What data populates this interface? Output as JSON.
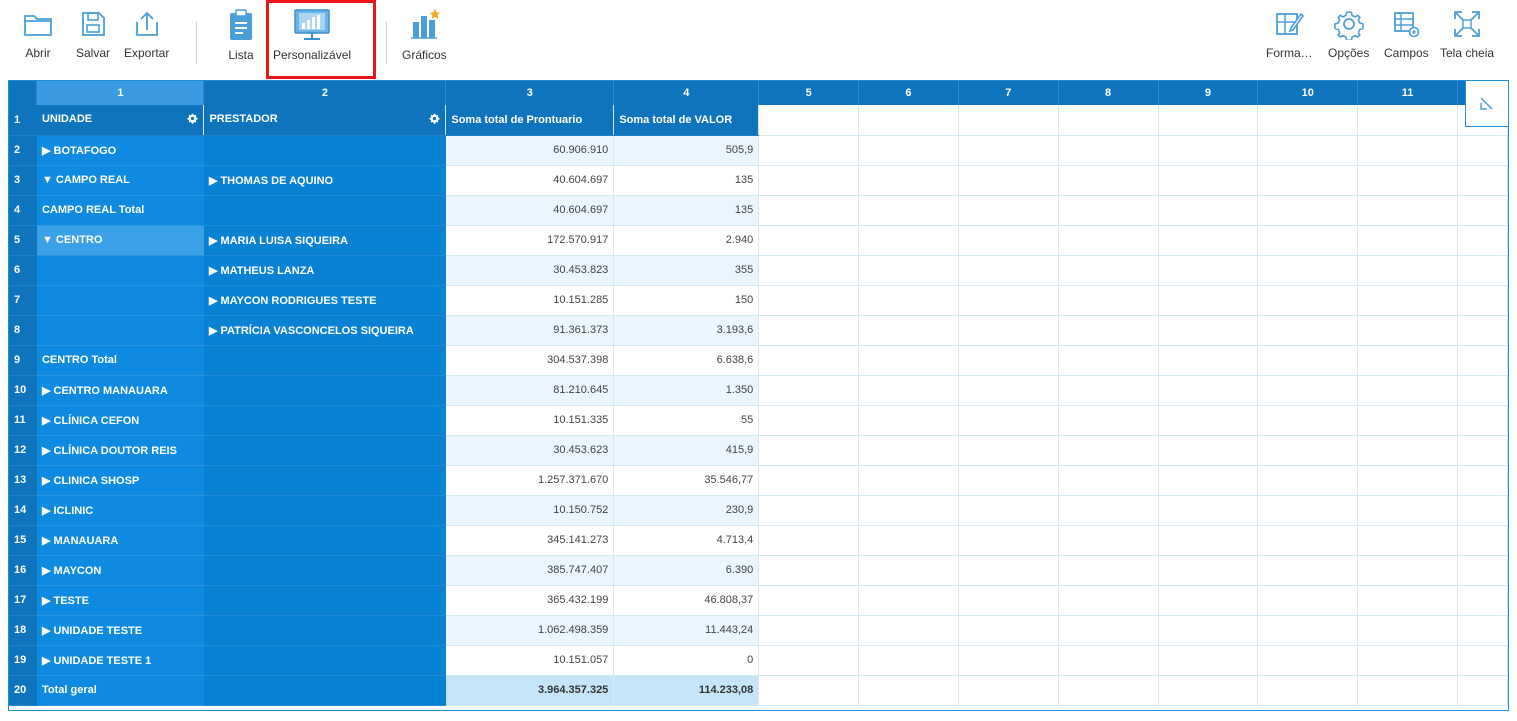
{
  "toolbar": {
    "left": [
      {
        "label": "Abrir",
        "icon": "folder-icon"
      },
      {
        "label": "Salvar",
        "icon": "save-icon"
      },
      {
        "label": "Exportar",
        "icon": "export-icon"
      },
      {
        "label": "Lista",
        "icon": "clipboard-icon"
      },
      {
        "label": "Personalizável",
        "icon": "monitor-chart-icon"
      },
      {
        "label": "Gráficos",
        "icon": "charts-icon"
      }
    ],
    "right": [
      {
        "label": "Forma…",
        "icon": "format-icon"
      },
      {
        "label": "Opções",
        "icon": "gear-icon"
      },
      {
        "label": "Campos",
        "icon": "fields-icon"
      },
      {
        "label": "Tela cheia",
        "icon": "fullscreen-icon"
      }
    ],
    "highlight_color": "#e8151b"
  },
  "grid": {
    "column_numbers": [
      "1",
      "2",
      "3",
      "4",
      "5",
      "6",
      "7",
      "8",
      "9",
      "10",
      "11"
    ],
    "header": {
      "rownum": "1",
      "unidade": "UNIDADE",
      "prestador": "PRESTADOR",
      "prontuario": "Soma total de Prontuario",
      "valor": "Soma total de VALOR"
    },
    "rows": [
      {
        "n": "2",
        "unidade": "▶ BOTAFOGO",
        "prestador": "",
        "prontuario": "60.906.910",
        "valor": "505,9"
      },
      {
        "n": "3",
        "unidade": "▼ CAMPO REAL",
        "prestador": "▶ THOMAS DE AQUINO",
        "prontuario": "40.604.697",
        "valor": "135"
      },
      {
        "n": "4",
        "unidade": "CAMPO REAL Total",
        "prestador": "",
        "prontuario": "40.604.697",
        "valor": "135"
      },
      {
        "n": "5",
        "unidade": "▼ CENTRO",
        "prestador": "▶ MARIA LUISA SIQUEIRA",
        "prontuario": "172.570.917",
        "valor": "2.940"
      },
      {
        "n": "6",
        "unidade": "",
        "prestador": "▶ MATHEUS LANZA",
        "prontuario": "30.453.823",
        "valor": "355"
      },
      {
        "n": "7",
        "unidade": "",
        "prestador": "▶ MAYCON RODRIGUES TESTE",
        "prontuario": "10.151.285",
        "valor": "150"
      },
      {
        "n": "8",
        "unidade": "",
        "prestador": "▶ PATRÍCIA VASCONCELOS SIQUEIRA",
        "prontuario": "91.361.373",
        "valor": "3.193,6"
      },
      {
        "n": "9",
        "unidade": "CENTRO Total",
        "prestador": "",
        "prontuario": "304.537.398",
        "valor": "6.638,6"
      },
      {
        "n": "10",
        "unidade": "▶ CENTRO MANAUARA",
        "prestador": "",
        "prontuario": "81.210.645",
        "valor": "1.350"
      },
      {
        "n": "11",
        "unidade": "▶ CLÍNICA CEFON",
        "prestador": "",
        "prontuario": "10.151.335",
        "valor": "55"
      },
      {
        "n": "12",
        "unidade": "▶ CLÍNICA DOUTOR REIS",
        "prestador": "",
        "prontuario": "30.453.623",
        "valor": "415,9"
      },
      {
        "n": "13",
        "unidade": "▶ CLINICA SHOSP",
        "prestador": "",
        "prontuario": "1.257.371.670",
        "valor": "35.546,77"
      },
      {
        "n": "14",
        "unidade": "▶ ICLINIC",
        "prestador": "",
        "prontuario": "10.150.752",
        "valor": "230,9"
      },
      {
        "n": "15",
        "unidade": "▶ MANAUARA",
        "prestador": "",
        "prontuario": "345.141.273",
        "valor": "4.713,4"
      },
      {
        "n": "16",
        "unidade": "▶ MAYCON",
        "prestador": "",
        "prontuario": "385.747.407",
        "valor": "6.390"
      },
      {
        "n": "17",
        "unidade": "▶ TESTE",
        "prestador": "",
        "prontuario": "365.432.199",
        "valor": "46.808,37"
      },
      {
        "n": "18",
        "unidade": "▶ UNIDADE TESTE",
        "prestador": "",
        "prontuario": "1.062.498.359",
        "valor": "11.443,24"
      },
      {
        "n": "19",
        "unidade": "▶ UNIDADE TESTE 1",
        "prestador": "",
        "prontuario": "10.151.057",
        "valor": "0"
      },
      {
        "n": "20",
        "unidade": "Total geral",
        "prestador": "",
        "prontuario": "3.964.357.325",
        "valor": "114.233,08"
      }
    ],
    "selected_row": "5",
    "colors": {
      "header_dark": "#0e74bd",
      "dim_blue": "#0e8be0",
      "cell_alt": "#eaf5fd",
      "total_cell": "#c6e4f8",
      "border": "#1d8fd2"
    }
  },
  "corner_icon": "collapse-icon"
}
